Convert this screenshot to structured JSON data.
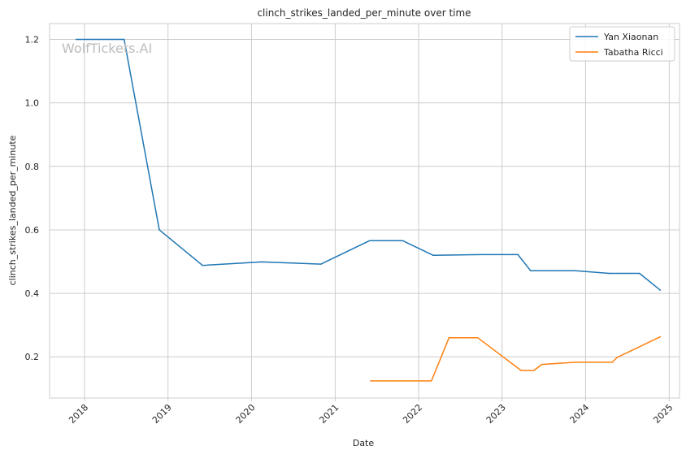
{
  "chart_data": {
    "type": "line",
    "title": "clinch_strikes_landed_per_minute over time",
    "xlabel": "Date",
    "ylabel": "clinch_strikes_landed_per_minute",
    "watermark": "WolfTickets.AI",
    "xlim": [
      "2017-08-01",
      "2025-02-15"
    ],
    "ylim": [
      0.07,
      1.25
    ],
    "x_ticks": [
      "2018",
      "2019",
      "2020",
      "2021",
      "2022",
      "2023",
      "2024",
      "2025"
    ],
    "y_ticks": [
      "0.2",
      "0.4",
      "0.6",
      "0.8",
      "1.0",
      "1.2"
    ],
    "grid": true,
    "legend_position": "top-right",
    "series": [
      {
        "name": "Yan Xiaonan",
        "color": "#1f77b4",
        "points": [
          {
            "x": "2017-11-25",
            "y": 1.2
          },
          {
            "x": "2018-06-23",
            "y": 1.2
          },
          {
            "x": "2018-11-24",
            "y": 0.6
          },
          {
            "x": "2019-06-01",
            "y": 0.488
          },
          {
            "x": "2020-02-15",
            "y": 0.499
          },
          {
            "x": "2020-10-31",
            "y": 0.492
          },
          {
            "x": "2021-06-01",
            "y": 0.566
          },
          {
            "x": "2021-10-23",
            "y": 0.566
          },
          {
            "x": "2022-03-05",
            "y": 0.52
          },
          {
            "x": "2022-10-01",
            "y": 0.522
          },
          {
            "x": "2023-03-11",
            "y": 0.522
          },
          {
            "x": "2023-05-06",
            "y": 0.471
          },
          {
            "x": "2023-11-18",
            "y": 0.471
          },
          {
            "x": "2024-04-13",
            "y": 0.463
          },
          {
            "x": "2024-08-24",
            "y": 0.463
          },
          {
            "x": "2024-11-23",
            "y": 0.41
          }
        ]
      },
      {
        "name": "Tabatha Ricci",
        "color": "#ff7f0e",
        "points": [
          {
            "x": "2021-06-05",
            "y": 0.124
          },
          {
            "x": "2022-02-26",
            "y": 0.124
          },
          {
            "x": "2022-05-14",
            "y": 0.26
          },
          {
            "x": "2022-09-17",
            "y": 0.26
          },
          {
            "x": "2023-03-25",
            "y": 0.157
          },
          {
            "x": "2023-05-20",
            "y": 0.157
          },
          {
            "x": "2023-06-24",
            "y": 0.176
          },
          {
            "x": "2023-11-18",
            "y": 0.183
          },
          {
            "x": "2024-04-27",
            "y": 0.183
          },
          {
            "x": "2024-05-18",
            "y": 0.198
          },
          {
            "x": "2024-11-23",
            "y": 0.263
          }
        ]
      }
    ]
  }
}
